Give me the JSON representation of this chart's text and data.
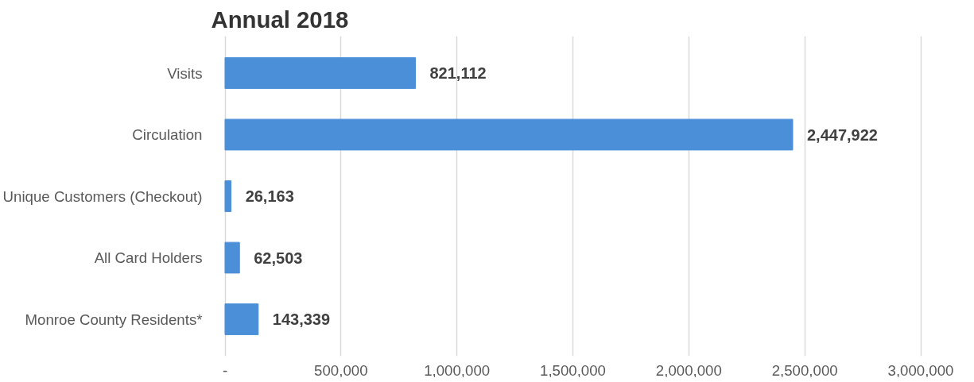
{
  "chart_data": {
    "type": "bar",
    "orientation": "horizontal",
    "title": "Annual 2018",
    "categories": [
      "Visits",
      "Circulation",
      "Unique Customers (Checkout)",
      "All Card Holders",
      "Monroe County Residents*"
    ],
    "values": [
      821112,
      2447922,
      26163,
      62503,
      143339
    ],
    "value_labels": [
      "821,112",
      "2,447,922",
      "26,163",
      "62,503",
      "143,339"
    ],
    "color": "#4a8fd8",
    "xlim": [
      0,
      3000000
    ],
    "xticks": [
      {
        "value": 0,
        "label": "-"
      },
      {
        "value": 500000,
        "label": "500,000"
      },
      {
        "value": 1000000,
        "label": "1,000,000"
      },
      {
        "value": 1500000,
        "label": "1,500,000"
      },
      {
        "value": 2000000,
        "label": "2,000,000"
      },
      {
        "value": 2500000,
        "label": "2,500,000"
      },
      {
        "value": 3000000,
        "label": "3,000,000"
      }
    ],
    "grid": "x"
  }
}
